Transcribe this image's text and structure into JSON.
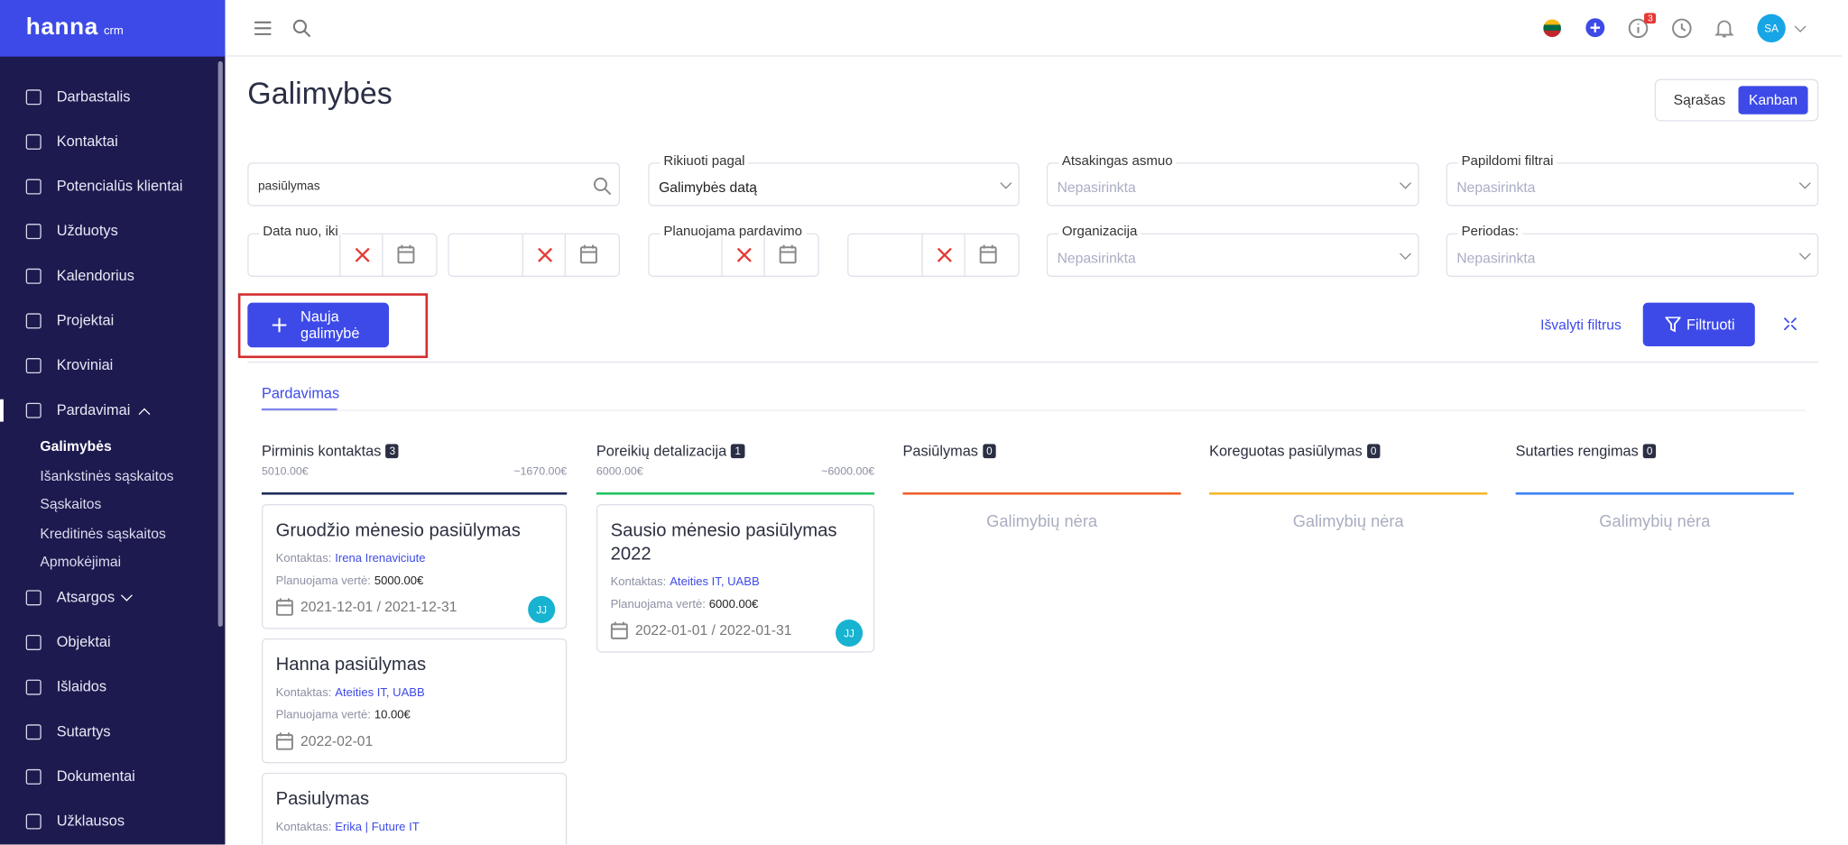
{
  "sidebar": {
    "logo": "hanna",
    "logo_suffix": "crm",
    "menu": [
      {
        "label": "Darbastalis"
      },
      {
        "label": "Kontaktai"
      },
      {
        "label": "Potencialūs klientai"
      },
      {
        "label": "Užduotys"
      },
      {
        "label": "Kalendorius"
      },
      {
        "label": "Projektai"
      },
      {
        "label": "Kroviniai"
      },
      {
        "label": "Pardavimai",
        "submenu": [
          "Galimybės",
          "Išankstinės sąskaitos",
          "Sąskaitos",
          "Kreditinės sąskaitos",
          "Apmokėjimai"
        ]
      },
      {
        "label": "Atsargos"
      },
      {
        "label": "Objektai"
      },
      {
        "label": "Išlaidos"
      },
      {
        "label": "Sutartys"
      },
      {
        "label": "Dokumentai"
      },
      {
        "label": "Užklausos"
      }
    ]
  },
  "header": {
    "notifications": "3",
    "avatar": "SA"
  },
  "page": {
    "title": "Galimybės",
    "views": [
      "Sąrašas",
      "Kanban"
    ]
  },
  "filters": {
    "search": "pasiūlymas",
    "sort_label": "Rikiuoti pagal",
    "sort_value": "Galimybės datą",
    "responsible_label": "Atsakingas asmuo",
    "responsible_value": "Nepasirinkta",
    "extra_label": "Papildomi filtrai",
    "extra_value": "Nepasirinkta",
    "date_label": "Data nuo, iki",
    "planned_label": "Planuojama pardavimo",
    "organization_label": "Organizacija",
    "organization_value": "Nepasirinkta",
    "period_label": "Periodas:",
    "period_value": "Nepasirinkta"
  },
  "actions": {
    "new": "Nauja galimybė",
    "clear": "Išvalyti filtrus",
    "filter": "Filtruoti"
  },
  "tab": "Pardavimas",
  "empty_text": "Galimybių nėra",
  "columns": [
    {
      "name": "Pirminis kontaktas",
      "count": "3",
      "sum_left": "5010.00€",
      "sum_right": "~1670.00€",
      "color": "#1e2a5a",
      "cards": [
        {
          "title": "Gruodžio mėnesio pasiūlymas",
          "contact_label": "Kontaktas:",
          "contact": "Irena Irenaviciute",
          "value_label": "Planuojama vertė:",
          "value": "5000.00€",
          "dates": "2021-12-01 / 2021-12-31",
          "assignee": "JJ"
        },
        {
          "title": "Hanna pasiūlymas",
          "contact_label": "Kontaktas:",
          "contact": "Ateities IT, UABB",
          "value_label": "Planuojama vertė:",
          "value": "10.00€",
          "dates": "2022-02-01"
        },
        {
          "title": "Pasiulymas",
          "contact_label": "Kontaktas:",
          "contact": "Erika | Future IT"
        }
      ]
    },
    {
      "name": "Poreikių detalizacija",
      "count": "1",
      "sum_left": "6000.00€",
      "sum_right": "~6000.00€",
      "color": "#22c55e",
      "cards": [
        {
          "title": "Sausio mėnesio pasiūlymas 2022",
          "contact_label": "Kontaktas:",
          "contact": "Ateities IT, UABB",
          "value_label": "Planuojama vertė:",
          "value": "6000.00€",
          "dates": "2022-01-01 / 2022-01-31",
          "assignee": "JJ"
        }
      ]
    },
    {
      "name": "Pasiūlymas",
      "count": "0",
      "color": "#f0622d",
      "cards": []
    },
    {
      "name": "Koreguotas pasiūlymas",
      "count": "0",
      "color": "#f5b82e",
      "cards": []
    },
    {
      "name": "Sutarties rengimas",
      "count": "0",
      "color": "#3b82f6",
      "cards": []
    }
  ]
}
